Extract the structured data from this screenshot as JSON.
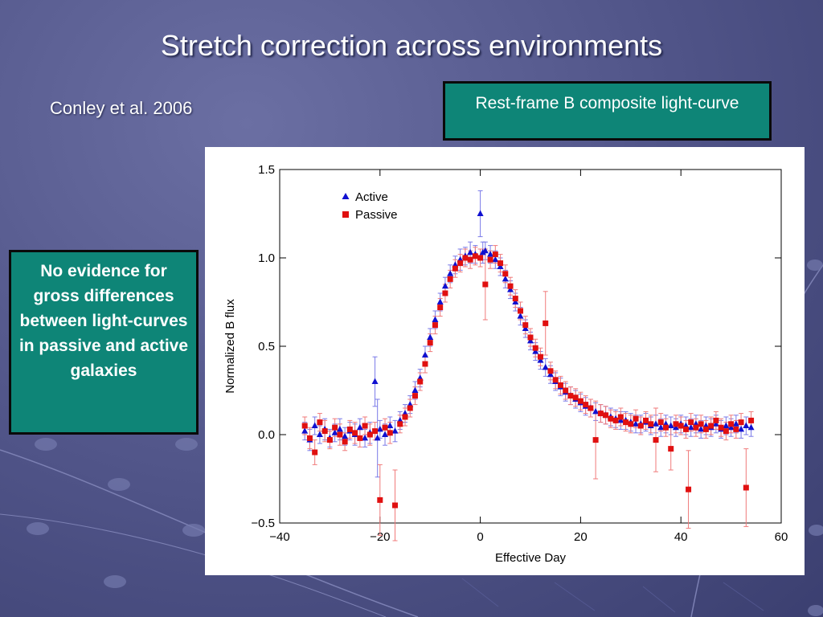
{
  "slide": {
    "title": "Stretch correction across environments",
    "citation": "Conley et al. 2006",
    "caption": "Rest-frame B composite light-curve",
    "note": "No evidence for gross differences between light-curves in passive and active galaxies"
  },
  "colors": {
    "active": "#1010d0",
    "passive": "#e01010",
    "box": "#0e8577"
  },
  "chart_data": {
    "type": "scatter",
    "title": "",
    "xlabel": "Effective Day",
    "ylabel": "Normalized B flux",
    "xlim": [
      -40,
      60
    ],
    "ylim": [
      -0.5,
      1.5
    ],
    "xticks": [
      -40,
      -20,
      0,
      20,
      40,
      60
    ],
    "xtick_labels": [
      "−40",
      "−20",
      "0",
      "20",
      "40",
      "60"
    ],
    "yticks": [
      -0.5,
      0.0,
      0.5,
      1.0,
      1.5
    ],
    "ytick_labels": [
      "−0.5",
      "0.0",
      "0.5",
      "1.0",
      "1.5"
    ],
    "legend_position": "top-left",
    "legend": [
      "Active",
      "Passive"
    ],
    "series": [
      {
        "name": "Active",
        "marker": "triangle",
        "color": "#1010d0",
        "points": [
          [
            -35,
            0.02,
            0.05
          ],
          [
            -34,
            -0.03,
            0.06
          ],
          [
            -33,
            0.05,
            0.05
          ],
          [
            -32,
            0.0,
            0.05
          ],
          [
            -31,
            0.03,
            0.06
          ],
          [
            -30,
            -0.02,
            0.05
          ],
          [
            -29,
            0.01,
            0.05
          ],
          [
            -28,
            0.03,
            0.06
          ],
          [
            -27,
            -0.01,
            0.05
          ],
          [
            -26,
            0.02,
            0.05
          ],
          [
            -25,
            0.0,
            0.06
          ],
          [
            -24,
            0.04,
            0.05
          ],
          [
            -23,
            -0.02,
            0.05
          ],
          [
            -22,
            0.01,
            0.06
          ],
          [
            -21,
            0.3,
            0.14
          ],
          [
            -20.5,
            -0.02,
            0.22
          ],
          [
            -20,
            0.03,
            0.05
          ],
          [
            -19,
            0.0,
            0.06
          ],
          [
            -18,
            0.05,
            0.05
          ],
          [
            -17,
            0.02,
            0.06
          ],
          [
            -16,
            0.08,
            0.05
          ],
          [
            -15,
            0.12,
            0.05
          ],
          [
            -14,
            0.17,
            0.05
          ],
          [
            -13,
            0.25,
            0.05
          ],
          [
            -12,
            0.32,
            0.05
          ],
          [
            -11,
            0.45,
            0.05
          ],
          [
            -10,
            0.55,
            0.05
          ],
          [
            -9,
            0.65,
            0.05
          ],
          [
            -8,
            0.75,
            0.05
          ],
          [
            -7,
            0.84,
            0.05
          ],
          [
            -6,
            0.91,
            0.05
          ],
          [
            -5,
            0.96,
            0.05
          ],
          [
            -4,
            0.99,
            0.06
          ],
          [
            -3,
            1.01,
            0.05
          ],
          [
            -2,
            1.03,
            0.06
          ],
          [
            -1,
            1.02,
            0.05
          ],
          [
            0,
            1.25,
            0.13
          ],
          [
            0.5,
            1.03,
            0.06
          ],
          [
            1,
            1.04,
            0.05
          ],
          [
            2,
            1.02,
            0.05
          ],
          [
            3,
            0.99,
            0.05
          ],
          [
            4,
            0.95,
            0.05
          ],
          [
            5,
            0.88,
            0.05
          ],
          [
            6,
            0.82,
            0.05
          ],
          [
            7,
            0.75,
            0.05
          ],
          [
            8,
            0.67,
            0.05
          ],
          [
            9,
            0.6,
            0.05
          ],
          [
            10,
            0.53,
            0.05
          ],
          [
            11,
            0.47,
            0.05
          ],
          [
            12,
            0.42,
            0.05
          ],
          [
            13,
            0.38,
            0.05
          ],
          [
            14,
            0.34,
            0.05
          ],
          [
            15,
            0.3,
            0.05
          ],
          [
            16,
            0.27,
            0.05
          ],
          [
            17,
            0.24,
            0.05
          ],
          [
            18,
            0.22,
            0.05
          ],
          [
            19,
            0.2,
            0.05
          ],
          [
            20,
            0.18,
            0.05
          ],
          [
            21,
            0.16,
            0.05
          ],
          [
            22,
            0.15,
            0.05
          ],
          [
            23,
            0.13,
            0.05
          ],
          [
            24,
            0.12,
            0.05
          ],
          [
            25,
            0.11,
            0.05
          ],
          [
            26,
            0.1,
            0.05
          ],
          [
            27,
            0.09,
            0.05
          ],
          [
            28,
            0.08,
            0.05
          ],
          [
            29,
            0.08,
            0.05
          ],
          [
            30,
            0.07,
            0.05
          ],
          [
            31,
            0.06,
            0.05
          ],
          [
            32,
            0.06,
            0.05
          ],
          [
            33,
            0.07,
            0.05
          ],
          [
            34,
            0.05,
            0.05
          ],
          [
            35,
            0.06,
            0.05
          ],
          [
            36,
            0.04,
            0.05
          ],
          [
            37,
            0.06,
            0.05
          ],
          [
            38,
            0.05,
            0.05
          ],
          [
            39,
            0.04,
            0.05
          ],
          [
            40,
            0.06,
            0.05
          ],
          [
            41,
            0.05,
            0.05
          ],
          [
            42,
            0.04,
            0.05
          ],
          [
            43,
            0.06,
            0.05
          ],
          [
            44,
            0.03,
            0.05
          ],
          [
            45,
            0.05,
            0.05
          ],
          [
            46,
            0.04,
            0.05
          ],
          [
            47,
            0.06,
            0.05
          ],
          [
            48,
            0.03,
            0.05
          ],
          [
            49,
            0.05,
            0.05
          ],
          [
            50,
            0.04,
            0.05
          ],
          [
            51,
            0.06,
            0.05
          ],
          [
            52,
            0.03,
            0.05
          ],
          [
            53,
            0.05,
            0.05
          ],
          [
            54,
            0.04,
            0.05
          ]
        ]
      },
      {
        "name": "Passive",
        "marker": "square",
        "color": "#e01010",
        "points": [
          [
            -35,
            0.05,
            0.05
          ],
          [
            -34,
            -0.02,
            0.06
          ],
          [
            -33,
            -0.1,
            0.07
          ],
          [
            -32,
            0.07,
            0.05
          ],
          [
            -31,
            0.02,
            0.06
          ],
          [
            -30,
            -0.03,
            0.05
          ],
          [
            -29,
            0.04,
            0.05
          ],
          [
            -28,
            0.0,
            0.06
          ],
          [
            -27,
            -0.04,
            0.05
          ],
          [
            -26,
            0.03,
            0.05
          ],
          [
            -25,
            0.01,
            0.06
          ],
          [
            -24,
            -0.02,
            0.05
          ],
          [
            -23,
            0.05,
            0.05
          ],
          [
            -22,
            0.0,
            0.06
          ],
          [
            -21,
            0.02,
            0.05
          ],
          [
            -20,
            -0.37,
            0.2
          ],
          [
            -19,
            0.04,
            0.05
          ],
          [
            -18,
            0.01,
            0.06
          ],
          [
            -17,
            -0.4,
            0.2
          ],
          [
            -16,
            0.06,
            0.05
          ],
          [
            -15,
            0.1,
            0.05
          ],
          [
            -14,
            0.15,
            0.05
          ],
          [
            -13,
            0.22,
            0.05
          ],
          [
            -12,
            0.3,
            0.05
          ],
          [
            -11,
            0.4,
            0.05
          ],
          [
            -10,
            0.52,
            0.05
          ],
          [
            -9,
            0.62,
            0.05
          ],
          [
            -8,
            0.72,
            0.05
          ],
          [
            -7,
            0.8,
            0.05
          ],
          [
            -6,
            0.88,
            0.05
          ],
          [
            -5,
            0.94,
            0.05
          ],
          [
            -4,
            0.97,
            0.05
          ],
          [
            -3,
            1.0,
            0.05
          ],
          [
            -2,
            0.99,
            0.05
          ],
          [
            -1,
            1.01,
            0.05
          ],
          [
            0,
            1.0,
            0.05
          ],
          [
            1,
            0.85,
            0.2
          ],
          [
            2,
            0.99,
            0.05
          ],
          [
            3,
            1.02,
            0.05
          ],
          [
            4,
            0.97,
            0.05
          ],
          [
            5,
            0.91,
            0.05
          ],
          [
            6,
            0.84,
            0.05
          ],
          [
            7,
            0.77,
            0.05
          ],
          [
            8,
            0.7,
            0.05
          ],
          [
            9,
            0.62,
            0.05
          ],
          [
            10,
            0.55,
            0.05
          ],
          [
            11,
            0.49,
            0.05
          ],
          [
            12,
            0.44,
            0.05
          ],
          [
            13,
            0.63,
            0.18
          ],
          [
            14,
            0.36,
            0.05
          ],
          [
            15,
            0.31,
            0.05
          ],
          [
            16,
            0.28,
            0.05
          ],
          [
            17,
            0.25,
            0.05
          ],
          [
            18,
            0.22,
            0.05
          ],
          [
            19,
            0.21,
            0.05
          ],
          [
            20,
            0.19,
            0.05
          ],
          [
            21,
            0.17,
            0.05
          ],
          [
            22,
            0.15,
            0.05
          ],
          [
            23,
            -0.03,
            0.22
          ],
          [
            24,
            0.12,
            0.05
          ],
          [
            25,
            0.11,
            0.05
          ],
          [
            26,
            0.09,
            0.05
          ],
          [
            27,
            0.08,
            0.05
          ],
          [
            28,
            0.1,
            0.05
          ],
          [
            29,
            0.07,
            0.05
          ],
          [
            30,
            0.06,
            0.05
          ],
          [
            31,
            0.09,
            0.05
          ],
          [
            32,
            0.05,
            0.05
          ],
          [
            33,
            0.08,
            0.05
          ],
          [
            34,
            0.06,
            0.05
          ],
          [
            35,
            -0.03,
            0.18
          ],
          [
            36,
            0.07,
            0.05
          ],
          [
            37,
            0.04,
            0.05
          ],
          [
            38,
            -0.08,
            0.12
          ],
          [
            39,
            0.06,
            0.05
          ],
          [
            40,
            0.05,
            0.05
          ],
          [
            41,
            0.03,
            0.05
          ],
          [
            41.5,
            -0.31,
            0.22
          ],
          [
            42,
            0.07,
            0.05
          ],
          [
            43,
            0.04,
            0.05
          ],
          [
            44,
            0.06,
            0.05
          ],
          [
            45,
            0.03,
            0.05
          ],
          [
            46,
            0.05,
            0.05
          ],
          [
            47,
            0.08,
            0.05
          ],
          [
            48,
            0.04,
            0.05
          ],
          [
            49,
            0.02,
            0.05
          ],
          [
            50,
            0.06,
            0.05
          ],
          [
            51,
            0.03,
            0.05
          ],
          [
            52,
            0.07,
            0.05
          ],
          [
            53,
            -0.3,
            0.22
          ],
          [
            54,
            0.08,
            0.05
          ]
        ]
      }
    ]
  }
}
